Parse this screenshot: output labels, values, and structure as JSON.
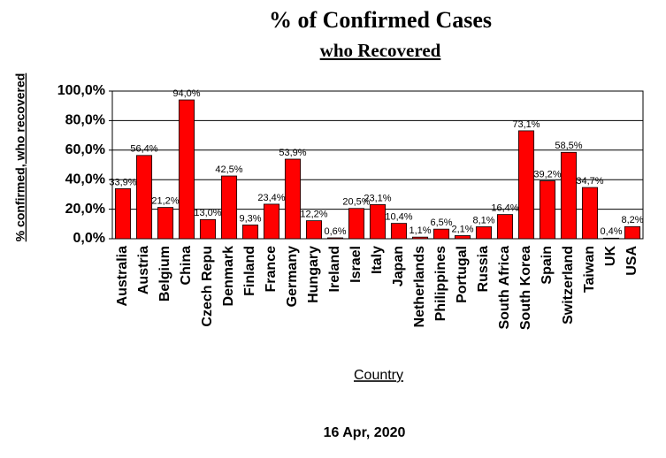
{
  "chart_data": {
    "type": "bar",
    "title": "% of Confirmed Cases",
    "subtitle": "who Recovered",
    "y_label": "% confirmed, who recovered",
    "x_label": "Country",
    "footer": "16 Apr, 2020",
    "categories": [
      "Australia",
      "Austria",
      "Belgium",
      "China",
      "Czech Repu",
      "Denmark",
      "Finland",
      "France",
      "Germany",
      "Hungary",
      "Ireland",
      "Israel",
      "Italy",
      "Japan",
      "Netherlands",
      "Philippines",
      "Portugal",
      "Russia",
      "South Africa",
      "South Korea",
      "Spain",
      "Switzerland",
      "Taiwan",
      "UK",
      "USA"
    ],
    "values": [
      33.9,
      56.4,
      21.2,
      94.0,
      13.0,
      42.5,
      9.3,
      23.4,
      53.9,
      12.2,
      0.6,
      20.5,
      23.1,
      10.4,
      1.1,
      6.5,
      2.1,
      8.1,
      16.4,
      73.1,
      39.2,
      58.5,
      34.7,
      0.4,
      8.2
    ],
    "value_labels": [
      "33,9%",
      "56,4%",
      "21,2%",
      "94,0%",
      "13,0%",
      "42,5%",
      "9,3%",
      "23,4%",
      "53,9%",
      "12,2%",
      "0,6%",
      "20,5%",
      "23,1%",
      "10,4%",
      "1,1%",
      "6,5%",
      "2,1%",
      "8,1%",
      "16,4%",
      "73,1%",
      "39,2%",
      "58,5%",
      "34,7%",
      "0,4%",
      "8,2%"
    ],
    "color": "#ff0000",
    "ylim": [
      0,
      100
    ],
    "yticks": [
      {
        "value": 0,
        "label": "0,0%"
      },
      {
        "value": 20,
        "label": "20,0%"
      },
      {
        "value": 40,
        "label": "40,0%"
      },
      {
        "value": 60,
        "label": "60,0%"
      },
      {
        "value": 80,
        "label": "80,0%"
      },
      {
        "value": 100,
        "label": "100,0%"
      }
    ],
    "grid": true
  }
}
